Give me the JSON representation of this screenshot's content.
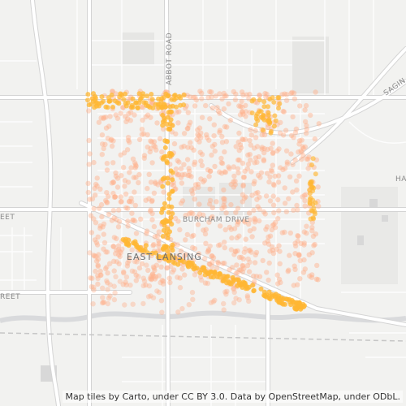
{
  "map": {
    "attribution": "Map tiles by Carto, under CC BY 3.0. Data by OpenStreetMap, under ODbL.",
    "labels": {
      "city": "EAST LANSING",
      "burcham": "BURCHAM DRIVE",
      "abbot": "ABBOT ROAD",
      "sagin": "SAGIN",
      "ha": "HA",
      "eet_left": "EET",
      "reet_left": "REET"
    },
    "colors": {
      "background": "#f2f2f0",
      "road_major": "#ffffff",
      "road_casing": "#d4d4d4",
      "park": "#e5e6e3",
      "water": "#d9dadc",
      "point_light": "#ffb08a",
      "point_dense": "#ffb733"
    }
  }
}
